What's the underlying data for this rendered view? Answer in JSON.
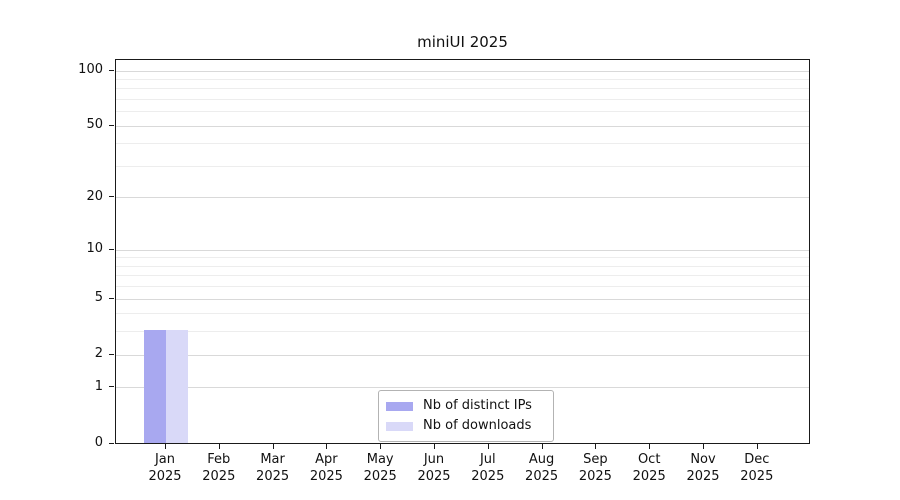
{
  "chart_data": {
    "type": "bar",
    "title": "miniUI 2025",
    "x": {
      "months": [
        "Jan",
        "Feb",
        "Mar",
        "Apr",
        "May",
        "Jun",
        "Jul",
        "Aug",
        "Sep",
        "Oct",
        "Nov",
        "Dec"
      ],
      "year": "2025"
    },
    "series": [
      {
        "name": "Nb of distinct IPs",
        "color": "#a8a8f0",
        "values": [
          3,
          0,
          0,
          0,
          0,
          0,
          0,
          0,
          0,
          0,
          0,
          0
        ]
      },
      {
        "name": "Nb of downloads",
        "color": "#d9d9f8",
        "values": [
          3,
          0,
          0,
          0,
          0,
          0,
          0,
          0,
          0,
          0,
          0,
          0
        ]
      }
    ],
    "y_axis": {
      "scale": "log10(value+1)",
      "range": [
        0,
        100
      ],
      "tick_values": [
        0,
        1,
        2,
        5,
        10,
        20,
        50,
        100
      ],
      "tick_labels": [
        "0",
        "1",
        "2",
        "5",
        "10",
        "20",
        "50",
        "100"
      ],
      "minor_grid_values": [
        3,
        4,
        6,
        7,
        8,
        9,
        30,
        40,
        60,
        70,
        80,
        90
      ]
    },
    "legend": {
      "position": "lower center (inside plot)"
    },
    "grid": true,
    "colors": {
      "major_grid": "#d9d9d9",
      "minor_grid": "#ededed",
      "axis": "#1a1a1a",
      "text": "#111111",
      "legend_border": "#b3b3b3",
      "background": "#ffffff"
    }
  }
}
